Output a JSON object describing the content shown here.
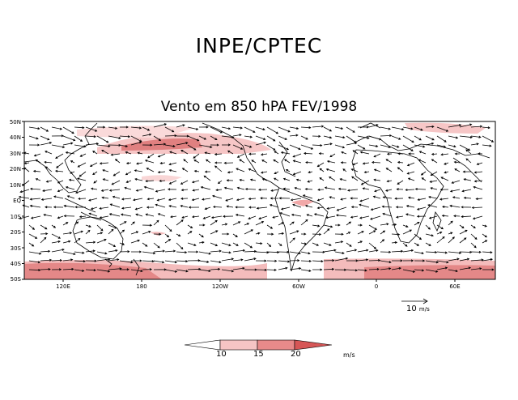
{
  "header": {
    "title": "INPE/CPTEC"
  },
  "map": {
    "title": "Vento em 850 hPA FEV/1998",
    "lat_labels": [
      "50N",
      "40N",
      "30N",
      "20N",
      "10N",
      "EQ",
      "10S",
      "20S",
      "30S",
      "40S",
      "50S"
    ],
    "lon_labels": [
      "120E",
      "180",
      "120W",
      "60W",
      "0",
      "60E"
    ]
  },
  "reference_vector": {
    "value": "10",
    "unit": "m/s"
  },
  "colorbar": {
    "ticks": [
      "10",
      "15",
      "20"
    ],
    "unit": "m/s",
    "colors": [
      "#ffffff",
      "#f6c4c4",
      "#e88a8a",
      "#d65656"
    ]
  },
  "colors": {
    "strong": "#e07a7a",
    "medium": "#f1b3b3",
    "light": "#fbe0e0"
  }
}
